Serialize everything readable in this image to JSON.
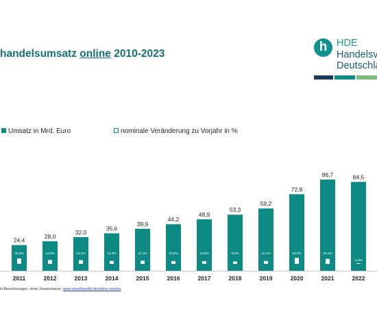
{
  "title": {
    "before": "handelsumsatz ",
    "underlined": "online",
    "after": " 2010-2023"
  },
  "logo": {
    "mark_letter": "h",
    "line1": "HDE",
    "line2": "Handelsv",
    "line3": "Deutschla",
    "colors": [
      "#1a3a5c",
      "#0d8a84",
      "#7aba7a",
      "#cfe0a8"
    ]
  },
  "legend": [
    {
      "label": "Umsatz in Mrd. Euro",
      "swatch": "filled",
      "color": "#0d8a84"
    },
    {
      "label": "nominale Veränderung zu Vorjahr in %",
      "swatch": "outline",
      "color": "#0d8a84"
    }
  ],
  "chart_data": {
    "type": "bar",
    "categories": [
      "2011",
      "2012",
      "2013",
      "2014",
      "2015",
      "2016",
      "2017",
      "2018",
      "2019",
      "2020",
      "2021",
      "2022"
    ],
    "series": [
      {
        "name": "Umsatz in Mrd. Euro",
        "values": [
          24.4,
          28.0,
          32.0,
          35.6,
          39.9,
          44.2,
          48.9,
          53.3,
          59.2,
          72.8,
          86.7,
          84.5
        ],
        "labels": [
          "24,4",
          "28,0",
          "32,0",
          "35,6",
          "39,9",
          "44,2",
          "48,9",
          "53,3",
          "59,2",
          "72,8",
          "86,7",
          "84,5"
        ],
        "color": "#0d8a84"
      },
      {
        "name": "nominale Veränderung zu Vorjahr in %",
        "values": [
          20.8,
          14.8,
          14.3,
          11.3,
          12.1,
          10.8,
          10.6,
          9.0,
          11.1,
          23.0,
          19.1,
          -2.5
        ],
        "labels": [
          "20,8%",
          "14,8%",
          "14,3%",
          "11,3%",
          "12,1%",
          "10,8%",
          "10,6%",
          "9,0%",
          "11,1%",
          "23,0%",
          "19,1%",
          "-2,5%"
        ],
        "color": "#ffffff"
      }
    ],
    "ylim": [
      0,
      90
    ],
    "grid": false,
    "legend_position": "top-left"
  },
  "source": {
    "text": "H-Berechnungen; ohne Umsatzsteuer; ",
    "link": "www.einzelhandel.de/online-monitor"
  }
}
